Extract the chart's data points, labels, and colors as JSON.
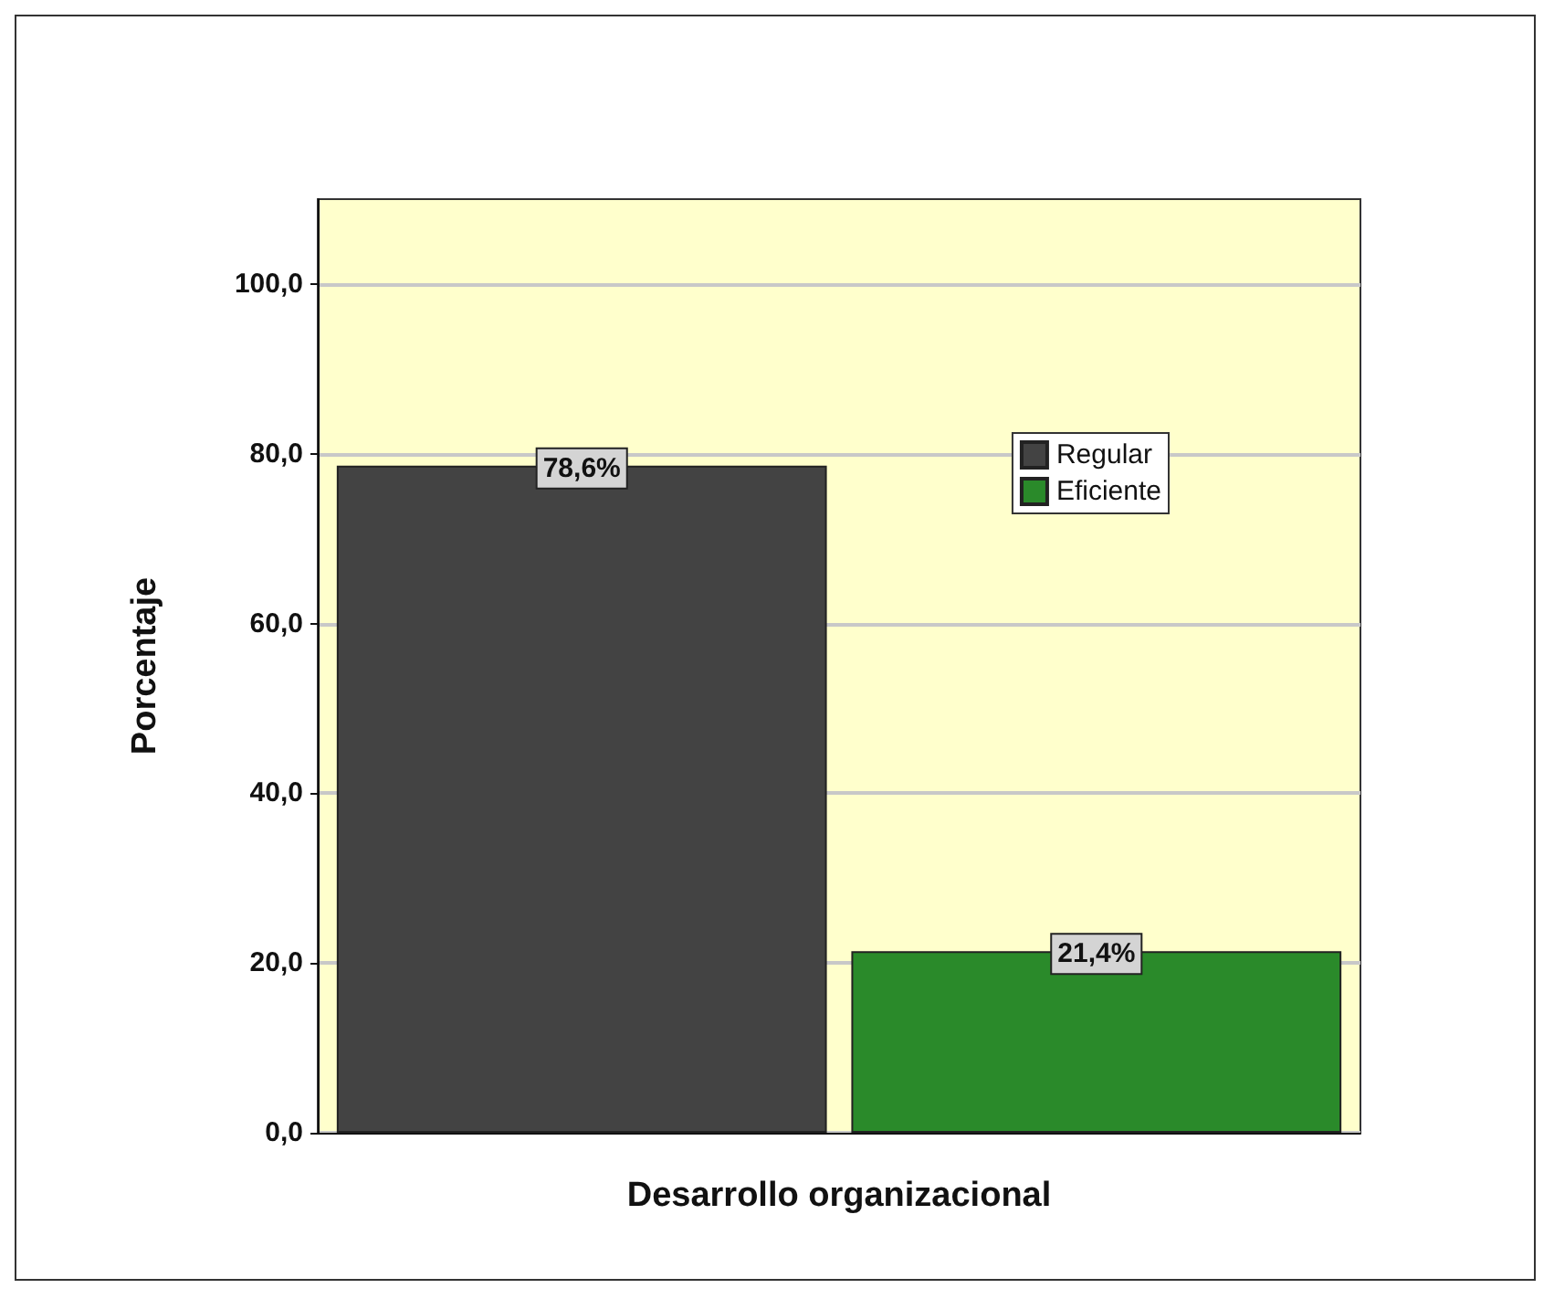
{
  "chart_data": {
    "type": "bar",
    "xlabel": "Desarrollo organizacional",
    "ylabel": "Porcentaje",
    "categories": [
      null
    ],
    "series": [
      {
        "name": "Regular",
        "color": "#434343",
        "values": [
          78.6
        ],
        "value_labels": [
          "78,6%"
        ]
      },
      {
        "name": "Eficiente",
        "color": "#2a8a2a",
        "values": [
          21.4
        ],
        "value_labels": [
          "21,4%"
        ]
      }
    ],
    "ylim": [
      0,
      110
    ],
    "yticks": [
      {
        "value": 0,
        "label": "0,0"
      },
      {
        "value": 20,
        "label": "20,0"
      },
      {
        "value": 40,
        "label": "40,0"
      },
      {
        "value": 60,
        "label": "60,0"
      },
      {
        "value": 80,
        "label": "80,0"
      },
      {
        "value": 100,
        "label": "100,0"
      }
    ],
    "grid": "y",
    "legend": "top right"
  }
}
